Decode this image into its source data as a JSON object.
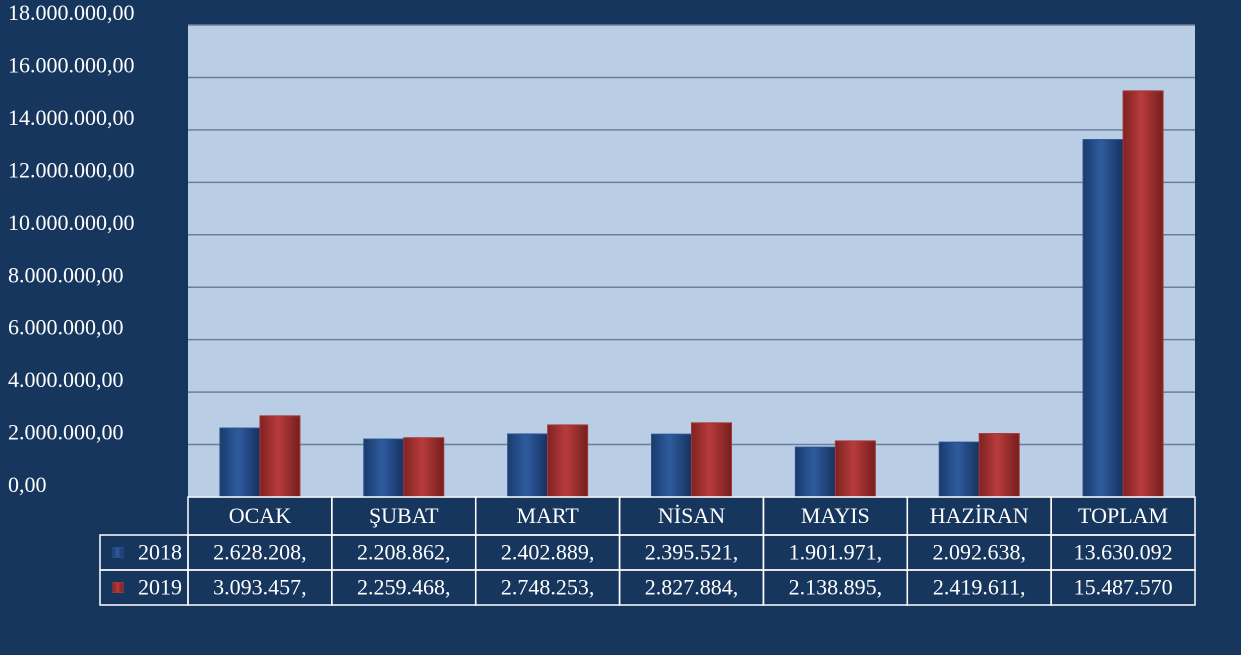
{
  "chart_data": {
    "type": "bar",
    "categories": [
      "OCAK",
      "ŞUBAT",
      "MART",
      "NİSAN",
      "MAYIS",
      "HAZİRAN",
      "TOPLAM"
    ],
    "series": [
      {
        "name": "2018",
        "color": "#27508f",
        "values": [
          2628208,
          2208862,
          2402889,
          2395521,
          1901971,
          2092638,
          13630092
        ],
        "value_labels": [
          "2.628.208,",
          "2.208.862,",
          "2.402.889,",
          "2.395.521,",
          "1.901.971,",
          "2.092.638,",
          "13.630.092"
        ]
      },
      {
        "name": "2019",
        "color": "#a93535",
        "values": [
          3093457,
          2259468,
          2748253,
          2827884,
          2138895,
          2419611,
          15487570
        ],
        "value_labels": [
          "3.093.457,",
          "2.259.468,",
          "2.748.253,",
          "2.827.884,",
          "2.138.895,",
          "2.419.611,",
          "15.487.570"
        ]
      }
    ],
    "ylim": [
      0,
      18000000
    ],
    "yticks": [
      {
        "value": 0,
        "label": "0,00"
      },
      {
        "value": 2000000,
        "label": "2.000.000,00"
      },
      {
        "value": 4000000,
        "label": "4.000.000,00"
      },
      {
        "value": 6000000,
        "label": "6.000.000,00"
      },
      {
        "value": 8000000,
        "label": "8.000.000,00"
      },
      {
        "value": 10000000,
        "label": "10.000.000,00"
      },
      {
        "value": 12000000,
        "label": "12.000.000,00"
      },
      {
        "value": 14000000,
        "label": "14.000.000,00"
      },
      {
        "value": 16000000,
        "label": "16.000.000,00"
      },
      {
        "value": 18000000,
        "label": "18.000.000,00"
      }
    ],
    "grid": true
  }
}
